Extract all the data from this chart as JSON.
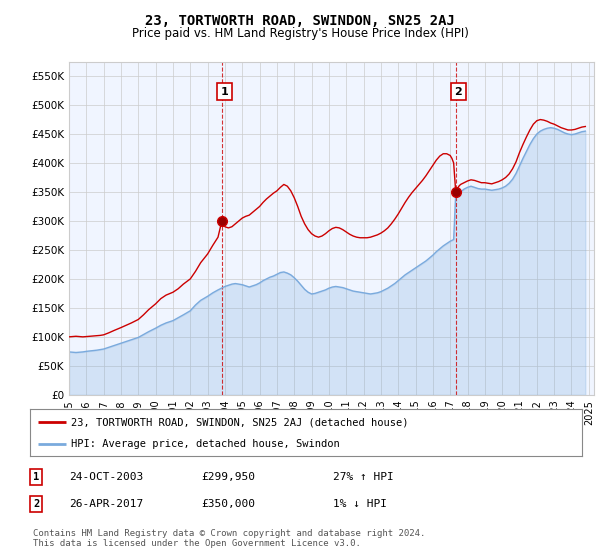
{
  "title": "23, TORTWORTH ROAD, SWINDON, SN25 2AJ",
  "subtitle": "Price paid vs. HM Land Registry's House Price Index (HPI)",
  "red_label": "23, TORTWORTH ROAD, SWINDON, SN25 2AJ (detached house)",
  "blue_label": "HPI: Average price, detached house, Swindon",
  "annotation1": {
    "num": "1",
    "date": "24-OCT-2003",
    "price": "£299,950",
    "change": "27% ↑ HPI"
  },
  "annotation2": {
    "num": "2",
    "date": "26-APR-2017",
    "price": "£350,000",
    "change": "1% ↓ HPI"
  },
  "footer": "Contains HM Land Registry data © Crown copyright and database right 2024.\nThis data is licensed under the Open Government Licence v3.0.",
  "ylim": [
    0,
    575000
  ],
  "yticks": [
    0,
    50000,
    100000,
    150000,
    200000,
    250000,
    300000,
    350000,
    400000,
    450000,
    500000,
    550000
  ],
  "ytick_labels": [
    "£0",
    "£50K",
    "£100K",
    "£150K",
    "£200K",
    "£250K",
    "£300K",
    "£350K",
    "£400K",
    "£450K",
    "£500K",
    "£550K"
  ],
  "red_color": "#cc0000",
  "blue_color": "#7aaadd",
  "fill_color": "#ddeeff",
  "background_color": "#ffffff",
  "grid_color": "#cccccc",
  "sale1_x": 2003.82,
  "sale1_y": 299950,
  "sale2_x": 2017.32,
  "sale2_y": 350000,
  "blue_data": [
    [
      1995.0,
      74000
    ],
    [
      1995.2,
      73500
    ],
    [
      1995.4,
      73000
    ],
    [
      1995.6,
      73500
    ],
    [
      1995.8,
      74000
    ],
    [
      1996.0,
      75000
    ],
    [
      1996.3,
      76000
    ],
    [
      1996.6,
      77000
    ],
    [
      1997.0,
      79000
    ],
    [
      1997.3,
      82000
    ],
    [
      1997.6,
      85000
    ],
    [
      1998.0,
      89000
    ],
    [
      1998.3,
      92000
    ],
    [
      1998.6,
      95000
    ],
    [
      1999.0,
      99000
    ],
    [
      1999.3,
      104000
    ],
    [
      1999.6,
      109000
    ],
    [
      2000.0,
      115000
    ],
    [
      2000.3,
      120000
    ],
    [
      2000.6,
      124000
    ],
    [
      2001.0,
      128000
    ],
    [
      2001.3,
      133000
    ],
    [
      2001.6,
      138000
    ],
    [
      2002.0,
      145000
    ],
    [
      2002.3,
      155000
    ],
    [
      2002.6,
      163000
    ],
    [
      2003.0,
      170000
    ],
    [
      2003.3,
      176000
    ],
    [
      2003.6,
      181000
    ],
    [
      2004.0,
      187000
    ],
    [
      2004.2,
      189000
    ],
    [
      2004.4,
      191000
    ],
    [
      2004.6,
      192000
    ],
    [
      2004.8,
      191000
    ],
    [
      2005.0,
      190000
    ],
    [
      2005.2,
      188000
    ],
    [
      2005.4,
      186000
    ],
    [
      2005.6,
      188000
    ],
    [
      2005.8,
      190000
    ],
    [
      2006.0,
      193000
    ],
    [
      2006.2,
      197000
    ],
    [
      2006.4,
      200000
    ],
    [
      2006.6,
      203000
    ],
    [
      2006.8,
      205000
    ],
    [
      2007.0,
      208000
    ],
    [
      2007.2,
      211000
    ],
    [
      2007.4,
      212000
    ],
    [
      2007.6,
      210000
    ],
    [
      2007.8,
      207000
    ],
    [
      2008.0,
      202000
    ],
    [
      2008.2,
      196000
    ],
    [
      2008.4,
      189000
    ],
    [
      2008.6,
      182000
    ],
    [
      2008.8,
      177000
    ],
    [
      2009.0,
      174000
    ],
    [
      2009.2,
      175000
    ],
    [
      2009.4,
      177000
    ],
    [
      2009.6,
      179000
    ],
    [
      2009.8,
      181000
    ],
    [
      2010.0,
      184000
    ],
    [
      2010.2,
      186000
    ],
    [
      2010.4,
      187000
    ],
    [
      2010.6,
      186000
    ],
    [
      2010.8,
      185000
    ],
    [
      2011.0,
      183000
    ],
    [
      2011.2,
      181000
    ],
    [
      2011.4,
      179000
    ],
    [
      2011.6,
      178000
    ],
    [
      2011.8,
      177000
    ],
    [
      2012.0,
      176000
    ],
    [
      2012.2,
      175000
    ],
    [
      2012.4,
      174000
    ],
    [
      2012.6,
      175000
    ],
    [
      2012.8,
      176000
    ],
    [
      2013.0,
      178000
    ],
    [
      2013.2,
      181000
    ],
    [
      2013.4,
      184000
    ],
    [
      2013.6,
      188000
    ],
    [
      2013.8,
      192000
    ],
    [
      2014.0,
      197000
    ],
    [
      2014.2,
      202000
    ],
    [
      2014.4,
      207000
    ],
    [
      2014.6,
      211000
    ],
    [
      2014.8,
      215000
    ],
    [
      2015.0,
      219000
    ],
    [
      2015.2,
      223000
    ],
    [
      2015.4,
      227000
    ],
    [
      2015.6,
      231000
    ],
    [
      2015.8,
      236000
    ],
    [
      2016.0,
      241000
    ],
    [
      2016.2,
      247000
    ],
    [
      2016.4,
      252000
    ],
    [
      2016.6,
      257000
    ],
    [
      2016.8,
      261000
    ],
    [
      2017.0,
      265000
    ],
    [
      2017.2,
      268000
    ],
    [
      2017.32,
      347000
    ],
    [
      2017.4,
      345000
    ],
    [
      2017.6,
      350000
    ],
    [
      2017.8,
      355000
    ],
    [
      2018.0,
      358000
    ],
    [
      2018.2,
      360000
    ],
    [
      2018.4,
      358000
    ],
    [
      2018.6,
      356000
    ],
    [
      2018.8,
      355000
    ],
    [
      2019.0,
      355000
    ],
    [
      2019.2,
      354000
    ],
    [
      2019.4,
      353000
    ],
    [
      2019.6,
      354000
    ],
    [
      2019.8,
      355000
    ],
    [
      2020.0,
      357000
    ],
    [
      2020.2,
      360000
    ],
    [
      2020.4,
      365000
    ],
    [
      2020.6,
      372000
    ],
    [
      2020.8,
      382000
    ],
    [
      2021.0,
      395000
    ],
    [
      2021.2,
      408000
    ],
    [
      2021.4,
      420000
    ],
    [
      2021.6,
      432000
    ],
    [
      2021.8,
      442000
    ],
    [
      2022.0,
      450000
    ],
    [
      2022.2,
      455000
    ],
    [
      2022.4,
      458000
    ],
    [
      2022.6,
      460000
    ],
    [
      2022.8,
      461000
    ],
    [
      2023.0,
      460000
    ],
    [
      2023.2,
      458000
    ],
    [
      2023.4,
      455000
    ],
    [
      2023.6,
      452000
    ],
    [
      2023.8,
      450000
    ],
    [
      2024.0,
      449000
    ],
    [
      2024.2,
      450000
    ],
    [
      2024.4,
      452000
    ],
    [
      2024.6,
      454000
    ],
    [
      2024.8,
      455000
    ]
  ],
  "red_data": [
    [
      1995.0,
      100000
    ],
    [
      1995.2,
      100500
    ],
    [
      1995.4,
      101000
    ],
    [
      1995.6,
      100500
    ],
    [
      1995.8,
      100000
    ],
    [
      1996.0,
      100500
    ],
    [
      1996.2,
      101000
    ],
    [
      1996.4,
      101500
    ],
    [
      1996.6,
      102000
    ],
    [
      1996.8,
      102500
    ],
    [
      1997.0,
      103500
    ],
    [
      1997.3,
      107000
    ],
    [
      1997.6,
      111000
    ],
    [
      1998.0,
      116000
    ],
    [
      1998.3,
      120000
    ],
    [
      1998.6,
      124000
    ],
    [
      1999.0,
      130000
    ],
    [
      1999.3,
      138000
    ],
    [
      1999.6,
      147000
    ],
    [
      2000.0,
      157000
    ],
    [
      2000.3,
      166000
    ],
    [
      2000.6,
      172000
    ],
    [
      2001.0,
      177000
    ],
    [
      2001.3,
      183000
    ],
    [
      2001.6,
      191000
    ],
    [
      2002.0,
      200000
    ],
    [
      2002.3,
      213000
    ],
    [
      2002.6,
      228000
    ],
    [
      2003.0,
      243000
    ],
    [
      2003.3,
      258000
    ],
    [
      2003.6,
      272000
    ],
    [
      2003.82,
      299950
    ],
    [
      2004.0,
      290000
    ],
    [
      2004.2,
      288000
    ],
    [
      2004.4,
      290000
    ],
    [
      2004.6,
      295000
    ],
    [
      2004.8,
      300000
    ],
    [
      2005.0,
      305000
    ],
    [
      2005.2,
      308000
    ],
    [
      2005.4,
      310000
    ],
    [
      2005.6,
      315000
    ],
    [
      2005.8,
      320000
    ],
    [
      2006.0,
      325000
    ],
    [
      2006.2,
      332000
    ],
    [
      2006.4,
      338000
    ],
    [
      2006.6,
      343000
    ],
    [
      2006.8,
      348000
    ],
    [
      2007.0,
      352000
    ],
    [
      2007.2,
      358000
    ],
    [
      2007.4,
      363000
    ],
    [
      2007.6,
      360000
    ],
    [
      2007.8,
      352000
    ],
    [
      2008.0,
      340000
    ],
    [
      2008.2,
      325000
    ],
    [
      2008.4,
      308000
    ],
    [
      2008.6,
      295000
    ],
    [
      2008.8,
      285000
    ],
    [
      2009.0,
      278000
    ],
    [
      2009.2,
      274000
    ],
    [
      2009.4,
      272000
    ],
    [
      2009.6,
      274000
    ],
    [
      2009.8,
      278000
    ],
    [
      2010.0,
      283000
    ],
    [
      2010.2,
      287000
    ],
    [
      2010.4,
      289000
    ],
    [
      2010.6,
      288000
    ],
    [
      2010.8,
      285000
    ],
    [
      2011.0,
      281000
    ],
    [
      2011.2,
      277000
    ],
    [
      2011.4,
      274000
    ],
    [
      2011.6,
      272000
    ],
    [
      2011.8,
      271000
    ],
    [
      2012.0,
      271000
    ],
    [
      2012.2,
      271000
    ],
    [
      2012.4,
      272000
    ],
    [
      2012.6,
      274000
    ],
    [
      2012.8,
      276000
    ],
    [
      2013.0,
      279000
    ],
    [
      2013.2,
      283000
    ],
    [
      2013.4,
      288000
    ],
    [
      2013.6,
      295000
    ],
    [
      2013.8,
      303000
    ],
    [
      2014.0,
      312000
    ],
    [
      2014.2,
      322000
    ],
    [
      2014.4,
      332000
    ],
    [
      2014.6,
      341000
    ],
    [
      2014.8,
      349000
    ],
    [
      2015.0,
      356000
    ],
    [
      2015.2,
      363000
    ],
    [
      2015.4,
      370000
    ],
    [
      2015.6,
      378000
    ],
    [
      2015.8,
      387000
    ],
    [
      2016.0,
      396000
    ],
    [
      2016.2,
      405000
    ],
    [
      2016.4,
      412000
    ],
    [
      2016.6,
      416000
    ],
    [
      2016.8,
      416000
    ],
    [
      2017.0,
      413000
    ],
    [
      2017.1,
      408000
    ],
    [
      2017.2,
      400000
    ],
    [
      2017.32,
      350000
    ],
    [
      2017.5,
      360000
    ],
    [
      2017.6,
      363000
    ],
    [
      2017.8,
      366000
    ],
    [
      2018.0,
      369000
    ],
    [
      2018.2,
      371000
    ],
    [
      2018.4,
      370000
    ],
    [
      2018.6,
      368000
    ],
    [
      2018.8,
      366000
    ],
    [
      2019.0,
      366000
    ],
    [
      2019.2,
      365000
    ],
    [
      2019.4,
      364000
    ],
    [
      2019.6,
      366000
    ],
    [
      2019.8,
      368000
    ],
    [
      2020.0,
      371000
    ],
    [
      2020.2,
      375000
    ],
    [
      2020.4,
      381000
    ],
    [
      2020.6,
      390000
    ],
    [
      2020.8,
      402000
    ],
    [
      2021.0,
      418000
    ],
    [
      2021.2,
      432000
    ],
    [
      2021.4,
      445000
    ],
    [
      2021.6,
      457000
    ],
    [
      2021.8,
      467000
    ],
    [
      2022.0,
      473000
    ],
    [
      2022.2,
      475000
    ],
    [
      2022.4,
      474000
    ],
    [
      2022.6,
      472000
    ],
    [
      2022.8,
      469000
    ],
    [
      2023.0,
      467000
    ],
    [
      2023.2,
      464000
    ],
    [
      2023.4,
      461000
    ],
    [
      2023.6,
      459000
    ],
    [
      2023.8,
      457000
    ],
    [
      2024.0,
      457000
    ],
    [
      2024.2,
      458000
    ],
    [
      2024.4,
      460000
    ],
    [
      2024.6,
      462000
    ],
    [
      2024.8,
      463000
    ]
  ],
  "xmin": 1995.0,
  "xmax": 2025.3,
  "xticks": [
    1995,
    1996,
    1997,
    1998,
    1999,
    2000,
    2001,
    2002,
    2003,
    2004,
    2005,
    2006,
    2007,
    2008,
    2009,
    2010,
    2011,
    2012,
    2013,
    2014,
    2015,
    2016,
    2017,
    2018,
    2019,
    2020,
    2021,
    2022,
    2023,
    2024,
    2025
  ]
}
